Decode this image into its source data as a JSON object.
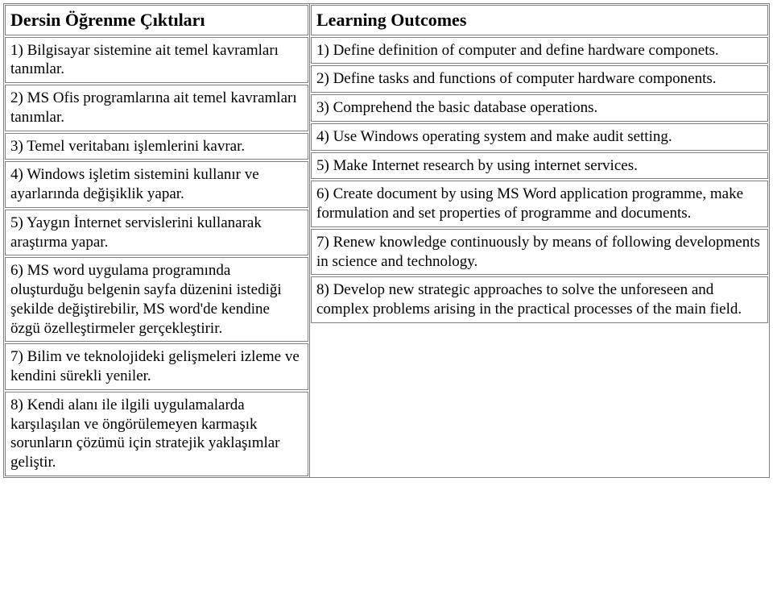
{
  "left": {
    "header": "Dersin Öğrenme Çıktıları",
    "items": [
      "  1) Bilgisayar sistemine ait temel kavramları tanımlar.",
      "  2) MS Ofis programlarına ait temel kavramları tanımlar.",
      "  3) Temel veritabanı işlemlerini kavrar.",
      "  4) Windows işletim sistemini kullanır ve ayarlarında değişiklik yapar.",
      "  5) Yaygın İnternet servislerini kullanarak araştırma yapar.",
      "  6) MS word uygulama programında oluşturduğu belgenin sayfa düzenini istediği şekilde değiştirebilir, MS word'de kendine özgü özelleştirmeler gerçekleştirir.",
      "  7) Bilim ve teknolojideki gelişmeleri izleme ve kendini sürekli yeniler.",
      "  8) Kendi alanı ile ilgili uygulamalarda karşılaşılan ve öngörülemeyen karmaşık sorunların çözümü için stratejik yaklaşımlar geliştir."
    ]
  },
  "right": {
    "header": "Learning Outcomes",
    "items": [
      "  1) Define definition of computer and define hardware componets.",
      "  2) Define tasks and functions of computer hardware components.",
      "  3) Comprehend the basic database operations.",
      "  4) Use Windows operating system and make audit setting.",
      "  5) Make Internet research by using internet services.",
      "  6) Create document by using MS Word application programme, make formulation and set properties of programme and documents.",
      "  7) Renew knowledge continuously by means of following developments in science and technology.",
      "  8) Develop new strategic approaches to solve the unforeseen and complex problems arising in the practical processes of the main field."
    ]
  }
}
